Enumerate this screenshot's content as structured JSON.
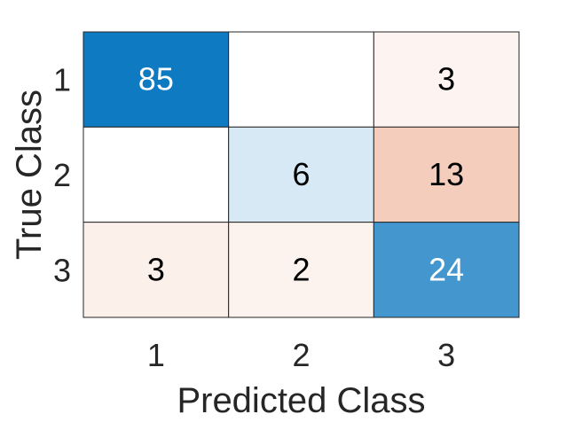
{
  "chart_data": {
    "type": "heatmap",
    "title": "",
    "xlabel": "Predicted Class",
    "ylabel": "True Class",
    "x_categories": [
      "1",
      "2",
      "3"
    ],
    "y_categories": [
      "1",
      "2",
      "3"
    ],
    "values": [
      [
        85,
        null,
        3
      ],
      [
        null,
        6,
        13
      ],
      [
        3,
        2,
        24
      ]
    ],
    "colors": {
      "diagonal_strong": "#0072bd",
      "diagonal_light": "#e1edf7",
      "offdiag_base": "#d95319",
      "empty": "#ffffff",
      "grid": "#262626"
    }
  }
}
